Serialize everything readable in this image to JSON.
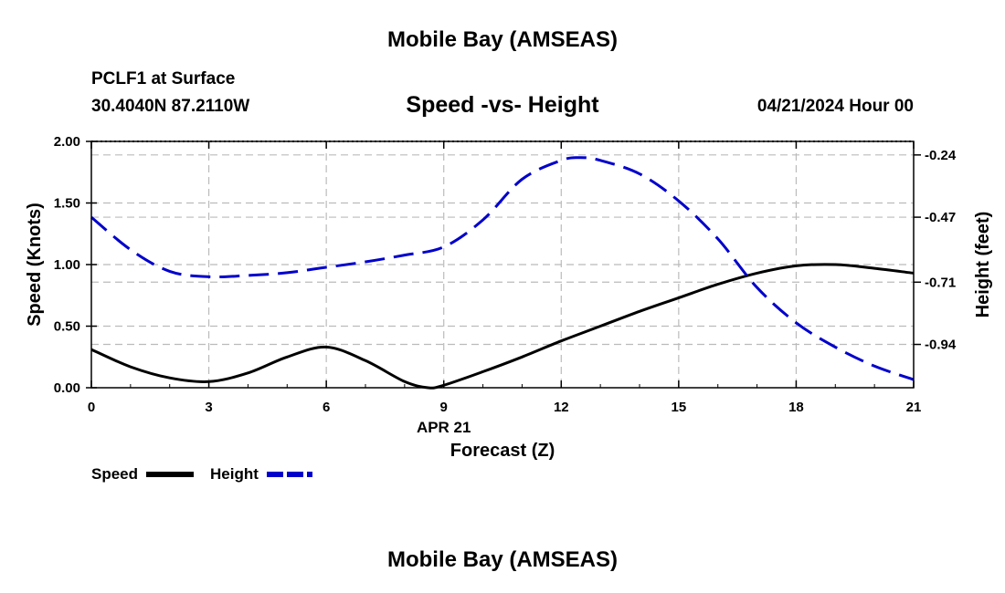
{
  "header": {
    "title": "Mobile Bay (AMSEAS)",
    "station": "PCLF1 at Surface",
    "coords": "30.4040N  87.2110W",
    "plot_title": "Speed -vs- Height",
    "datetime": "04/21/2024 Hour 00"
  },
  "footer": {
    "title": "Mobile Bay (AMSEAS)"
  },
  "legend": {
    "speed_label": "Speed",
    "height_label": "Height"
  },
  "colors": {
    "speed": "#000000",
    "height": "#0000cc",
    "grid": "#bbbbbb"
  },
  "chart_data": {
    "type": "line",
    "title": "Speed -vs- Height",
    "xlabel": "Forecast (Z)",
    "xsublabel": "APR 21",
    "ylabel": "Speed (Knots)",
    "y2label": "Height (feet)",
    "xlim": [
      0,
      21
    ],
    "ylim": [
      0,
      2
    ],
    "y2lim": [
      -1.1,
      -0.19
    ],
    "x_ticks": [
      0,
      3,
      6,
      9,
      12,
      15,
      18,
      21
    ],
    "x_tick_labels": [
      "0",
      "3",
      "6",
      "9",
      "12",
      "15",
      "18",
      "21"
    ],
    "y_ticks": [
      0,
      0.5,
      1,
      1.5,
      2
    ],
    "y_tick_labels": [
      "0.00",
      "0.50",
      "1.00",
      "1.50",
      "2.00"
    ],
    "y2_ticks": [
      -0.24,
      -0.47,
      -0.71,
      -0.94
    ],
    "y2_tick_labels": [
      "-0.24",
      "-0.47",
      "-0.71",
      "-0.94"
    ],
    "grid": true,
    "legend_position": "bottom-left",
    "series": [
      {
        "name": "Speed",
        "axis": "left",
        "style": "solid",
        "x": [
          0,
          1,
          2,
          3,
          4,
          5,
          6,
          7,
          8,
          8.6,
          9,
          10,
          11,
          12,
          13,
          14,
          15,
          16,
          17,
          18,
          19,
          20,
          21
        ],
        "values": [
          0.31,
          0.17,
          0.08,
          0.05,
          0.12,
          0.25,
          0.33,
          0.22,
          0.05,
          0.0,
          0.02,
          0.13,
          0.25,
          0.38,
          0.5,
          0.62,
          0.73,
          0.84,
          0.93,
          0.99,
          1.0,
          0.97,
          0.93
        ]
      },
      {
        "name": "Height",
        "axis": "right",
        "style": "dashed",
        "x": [
          0,
          1,
          2,
          3,
          4,
          5,
          6,
          7,
          8,
          9,
          10,
          11,
          12,
          12.5,
          13,
          14,
          15,
          16,
          17,
          18,
          19,
          20,
          21
        ],
        "values": [
          -0.47,
          -0.59,
          -0.67,
          -0.69,
          -0.685,
          -0.675,
          -0.655,
          -0.635,
          -0.61,
          -0.58,
          -0.48,
          -0.33,
          -0.26,
          -0.25,
          -0.26,
          -0.31,
          -0.41,
          -0.55,
          -0.73,
          -0.86,
          -0.95,
          -1.02,
          -1.07
        ]
      }
    ]
  }
}
